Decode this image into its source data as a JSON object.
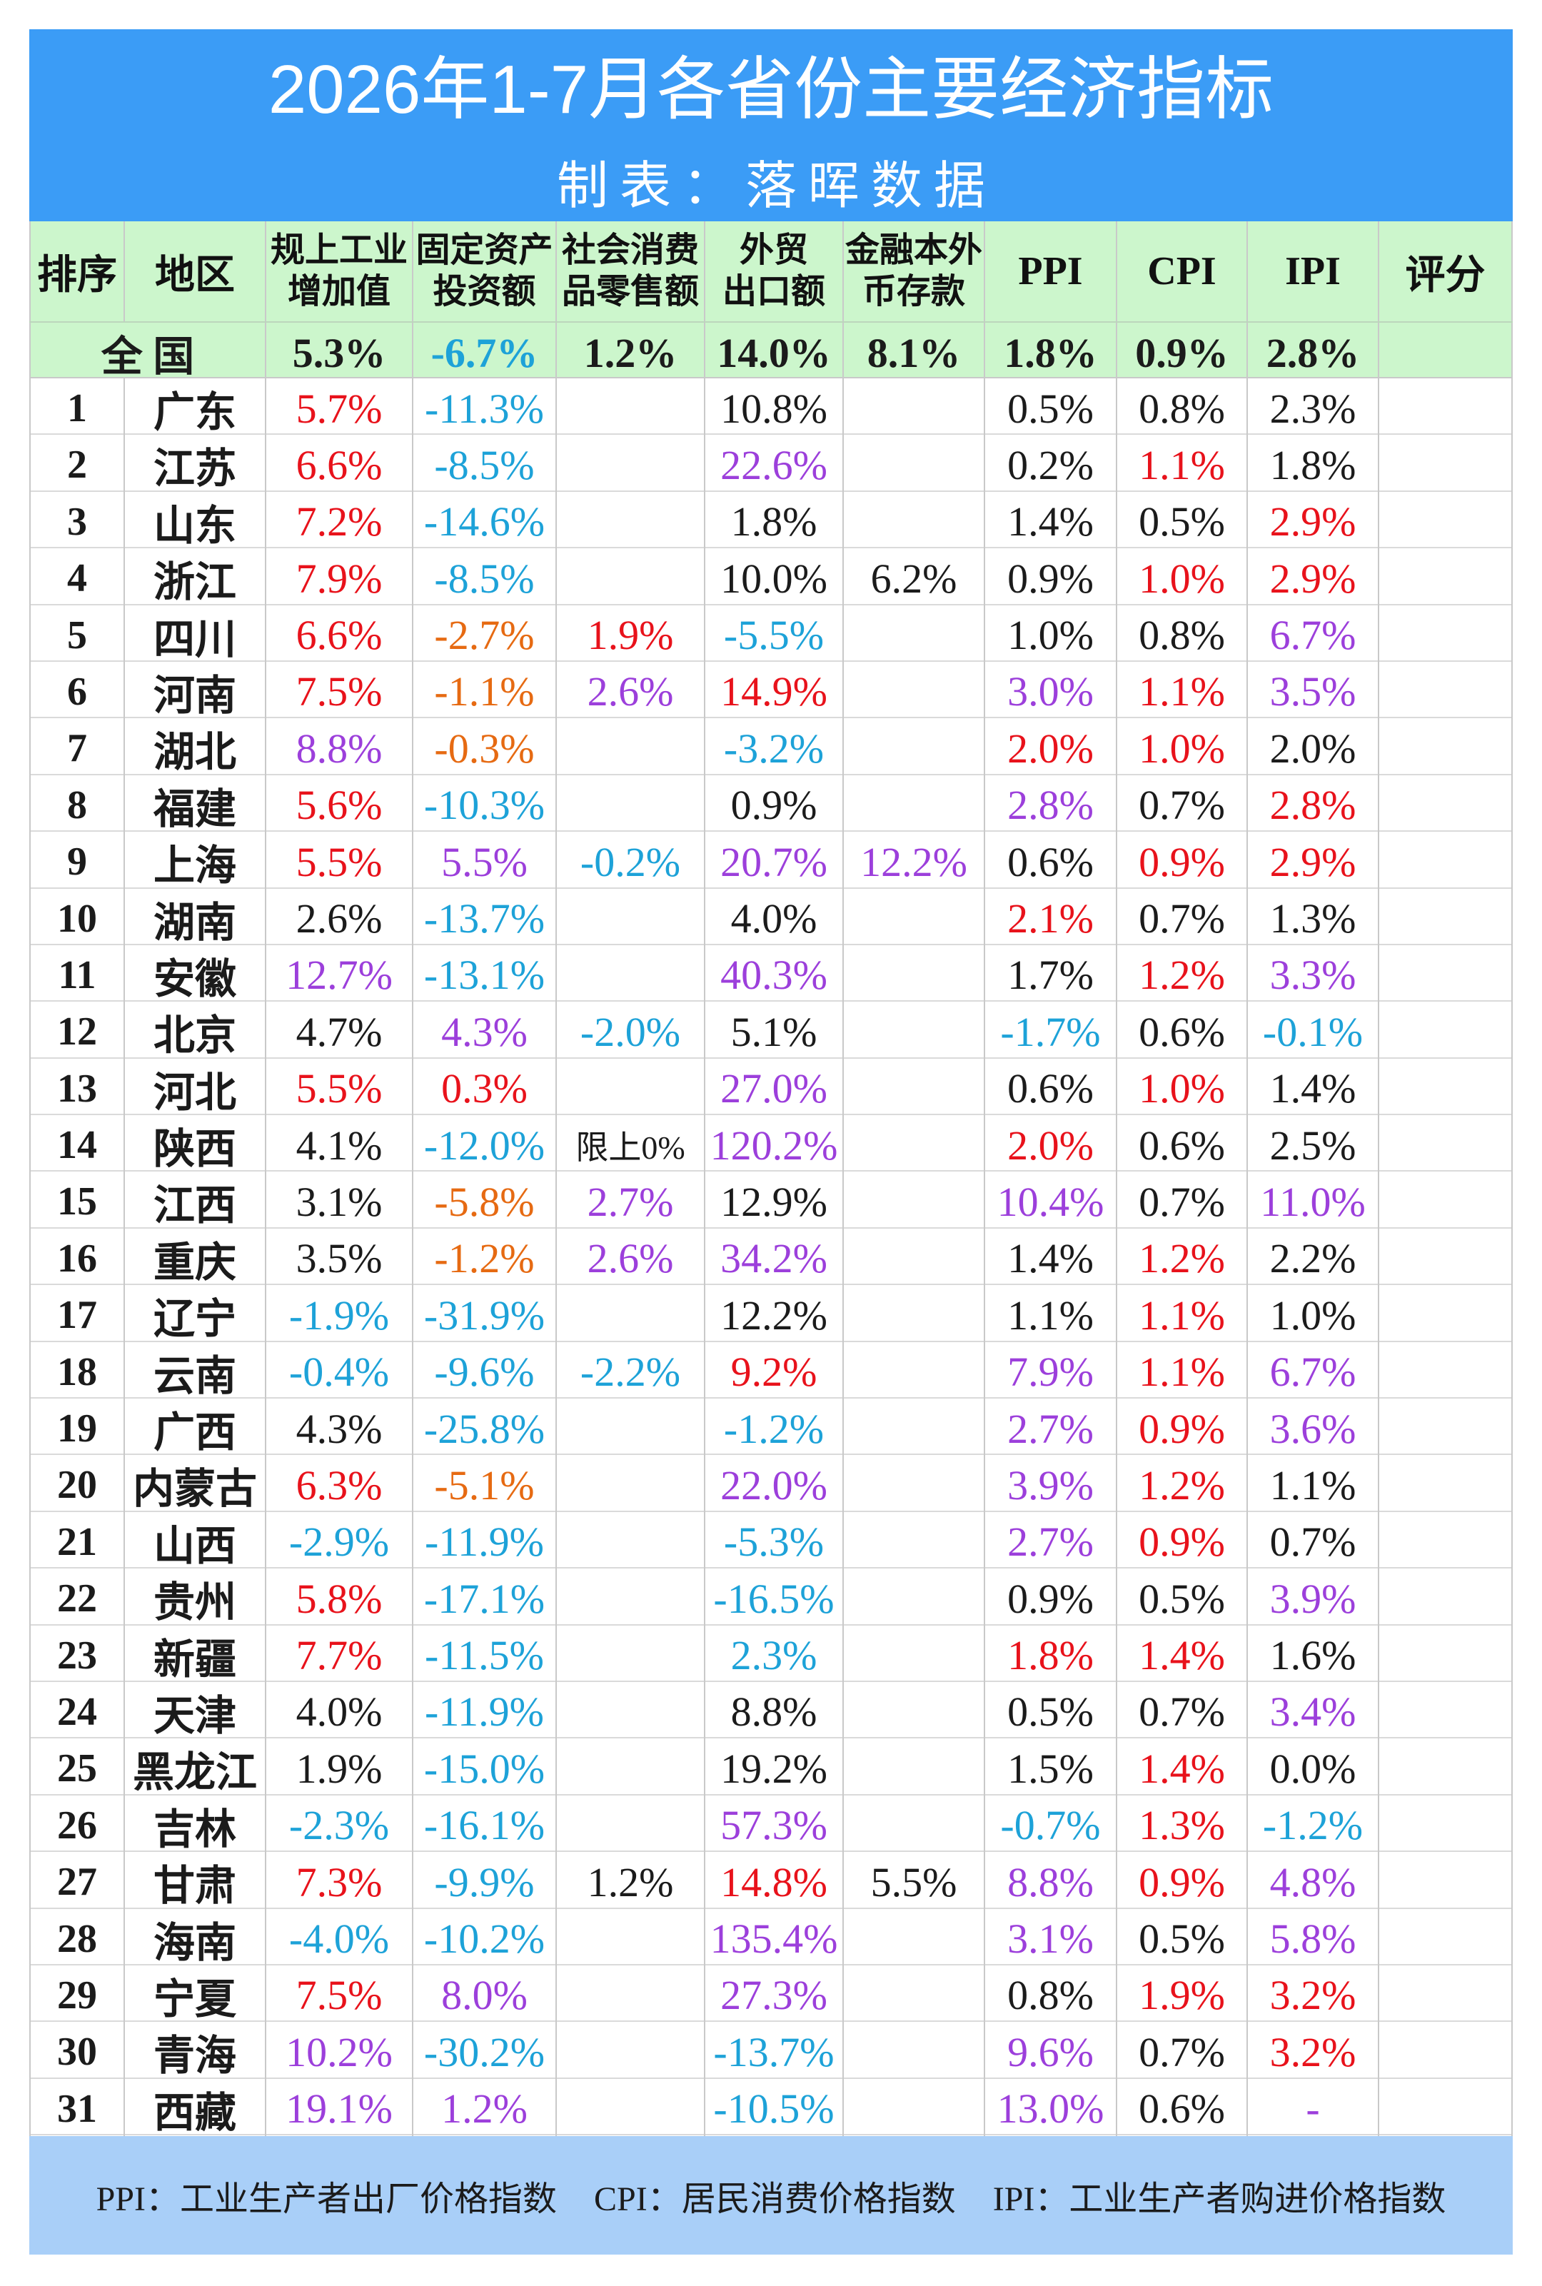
{
  "palette": {
    "title_band": "#3b9cf6",
    "header_band": "#ccf6cc",
    "footer_band": "#a9cff8",
    "red": "#e8121b",
    "blue": "#1da2d8",
    "purple": "#9c3fdb",
    "orange": "#e66a12",
    "black": "#1b1b1b"
  },
  "chart_data": {
    "type": "table",
    "title": "2026年1-7月各省份主要经济指标",
    "subtitle": "制表：落晖数据",
    "columns": [
      [
        "排序"
      ],
      [
        "地区"
      ],
      [
        "规上工业",
        "增加值"
      ],
      [
        "固定资产",
        "投资额"
      ],
      [
        "社会消费",
        "品零售额"
      ],
      [
        "外贸",
        "出口额"
      ],
      [
        "金融本外",
        "币存款"
      ],
      [
        "PPI"
      ],
      [
        "CPI"
      ],
      [
        "IPI"
      ],
      [
        "评分"
      ]
    ],
    "national": {
      "label": "全 国",
      "cells": [
        [
          "5.3%",
          "black"
        ],
        [
          "-6.7%",
          "blue"
        ],
        [
          "1.2%",
          "black"
        ],
        [
          "14.0%",
          "black"
        ],
        [
          "8.1%",
          "black"
        ],
        [
          "1.8%",
          "black"
        ],
        [
          "0.9%",
          "black"
        ],
        [
          "2.8%",
          "black"
        ]
      ]
    },
    "rows": [
      {
        "rank": 1,
        "region": "广东",
        "cells": [
          [
            "5.7%",
            "red"
          ],
          [
            "-11.3%",
            "blue"
          ],
          null,
          [
            "10.8%",
            "black"
          ],
          null,
          [
            "0.5%",
            "black"
          ],
          [
            "0.8%",
            "black"
          ],
          [
            "2.3%",
            "black"
          ]
        ]
      },
      {
        "rank": 2,
        "region": "江苏",
        "cells": [
          [
            "6.6%",
            "red"
          ],
          [
            "-8.5%",
            "blue"
          ],
          null,
          [
            "22.6%",
            "purple"
          ],
          null,
          [
            "0.2%",
            "black"
          ],
          [
            "1.1%",
            "red"
          ],
          [
            "1.8%",
            "black"
          ]
        ]
      },
      {
        "rank": 3,
        "region": "山东",
        "cells": [
          [
            "7.2%",
            "red"
          ],
          [
            "-14.6%",
            "blue"
          ],
          null,
          [
            "1.8%",
            "black"
          ],
          null,
          [
            "1.4%",
            "black"
          ],
          [
            "0.5%",
            "black"
          ],
          [
            "2.9%",
            "red"
          ]
        ]
      },
      {
        "rank": 4,
        "region": "浙江",
        "cells": [
          [
            "7.9%",
            "red"
          ],
          [
            "-8.5%",
            "blue"
          ],
          null,
          [
            "10.0%",
            "black"
          ],
          [
            "6.2%",
            "black"
          ],
          [
            "0.9%",
            "black"
          ],
          [
            "1.0%",
            "red"
          ],
          [
            "2.9%",
            "red"
          ]
        ]
      },
      {
        "rank": 5,
        "region": "四川",
        "cells": [
          [
            "6.6%",
            "red"
          ],
          [
            "-2.7%",
            "orange"
          ],
          [
            "1.9%",
            "red"
          ],
          [
            "-5.5%",
            "blue"
          ],
          null,
          [
            "1.0%",
            "black"
          ],
          [
            "0.8%",
            "black"
          ],
          [
            "6.7%",
            "purple"
          ]
        ]
      },
      {
        "rank": 6,
        "region": "河南",
        "cells": [
          [
            "7.5%",
            "red"
          ],
          [
            "-1.1%",
            "orange"
          ],
          [
            "2.6%",
            "purple"
          ],
          [
            "14.9%",
            "red"
          ],
          null,
          [
            "3.0%",
            "purple"
          ],
          [
            "1.1%",
            "red"
          ],
          [
            "3.5%",
            "purple"
          ]
        ]
      },
      {
        "rank": 7,
        "region": "湖北",
        "cells": [
          [
            "8.8%",
            "purple"
          ],
          [
            "-0.3%",
            "orange"
          ],
          null,
          [
            "-3.2%",
            "blue"
          ],
          null,
          [
            "2.0%",
            "red"
          ],
          [
            "1.0%",
            "red"
          ],
          [
            "2.0%",
            "black"
          ]
        ]
      },
      {
        "rank": 8,
        "region": "福建",
        "cells": [
          [
            "5.6%",
            "red"
          ],
          [
            "-10.3%",
            "blue"
          ],
          null,
          [
            "0.9%",
            "black"
          ],
          null,
          [
            "2.8%",
            "purple"
          ],
          [
            "0.7%",
            "black"
          ],
          [
            "2.8%",
            "red"
          ]
        ]
      },
      {
        "rank": 9,
        "region": "上海",
        "cells": [
          [
            "5.5%",
            "red"
          ],
          [
            "5.5%",
            "purple"
          ],
          [
            "-0.2%",
            "blue"
          ],
          [
            "20.7%",
            "purple"
          ],
          [
            "12.2%",
            "purple"
          ],
          [
            "0.6%",
            "black"
          ],
          [
            "0.9%",
            "red"
          ],
          [
            "2.9%",
            "red"
          ]
        ]
      },
      {
        "rank": 10,
        "region": "湖南",
        "cells": [
          [
            "2.6%",
            "black"
          ],
          [
            "-13.7%",
            "blue"
          ],
          null,
          [
            "4.0%",
            "black"
          ],
          null,
          [
            "2.1%",
            "red"
          ],
          [
            "0.7%",
            "black"
          ],
          [
            "1.3%",
            "black"
          ]
        ]
      },
      {
        "rank": 11,
        "region": "安徽",
        "cells": [
          [
            "12.7%",
            "purple"
          ],
          [
            "-13.1%",
            "blue"
          ],
          null,
          [
            "40.3%",
            "purple"
          ],
          null,
          [
            "1.7%",
            "black"
          ],
          [
            "1.2%",
            "red"
          ],
          [
            "3.3%",
            "purple"
          ]
        ]
      },
      {
        "rank": 12,
        "region": "北京",
        "cells": [
          [
            "4.7%",
            "black"
          ],
          [
            "4.3%",
            "purple"
          ],
          [
            "-2.0%",
            "blue"
          ],
          [
            "5.1%",
            "black"
          ],
          null,
          [
            "-1.7%",
            "blue"
          ],
          [
            "0.6%",
            "black"
          ],
          [
            "-0.1%",
            "blue"
          ]
        ]
      },
      {
        "rank": 13,
        "region": "河北",
        "cells": [
          [
            "5.5%",
            "red"
          ],
          [
            "0.3%",
            "red"
          ],
          null,
          [
            "27.0%",
            "purple"
          ],
          null,
          [
            "0.6%",
            "black"
          ],
          [
            "1.0%",
            "red"
          ],
          [
            "1.4%",
            "black"
          ]
        ]
      },
      {
        "rank": 14,
        "region": "陕西",
        "cells": [
          [
            "4.1%",
            "black"
          ],
          [
            "-12.0%",
            "blue"
          ],
          [
            "限上0%",
            "black"
          ],
          [
            "120.2%",
            "purple"
          ],
          null,
          [
            "2.0%",
            "red"
          ],
          [
            "0.6%",
            "black"
          ],
          [
            "2.5%",
            "black"
          ]
        ]
      },
      {
        "rank": 15,
        "region": "江西",
        "cells": [
          [
            "3.1%",
            "black"
          ],
          [
            "-5.8%",
            "orange"
          ],
          [
            "2.7%",
            "purple"
          ],
          [
            "12.9%",
            "black"
          ],
          null,
          [
            "10.4%",
            "purple"
          ],
          [
            "0.7%",
            "black"
          ],
          [
            "11.0%",
            "purple"
          ]
        ]
      },
      {
        "rank": 16,
        "region": "重庆",
        "cells": [
          [
            "3.5%",
            "black"
          ],
          [
            "-1.2%",
            "orange"
          ],
          [
            "2.6%",
            "purple"
          ],
          [
            "34.2%",
            "purple"
          ],
          null,
          [
            "1.4%",
            "black"
          ],
          [
            "1.2%",
            "red"
          ],
          [
            "2.2%",
            "black"
          ]
        ]
      },
      {
        "rank": 17,
        "region": "辽宁",
        "cells": [
          [
            "-1.9%",
            "blue"
          ],
          [
            "-31.9%",
            "blue"
          ],
          null,
          [
            "12.2%",
            "black"
          ],
          null,
          [
            "1.1%",
            "black"
          ],
          [
            "1.1%",
            "red"
          ],
          [
            "1.0%",
            "black"
          ]
        ]
      },
      {
        "rank": 18,
        "region": "云南",
        "cells": [
          [
            "-0.4%",
            "blue"
          ],
          [
            "-9.6%",
            "blue"
          ],
          [
            "-2.2%",
            "blue"
          ],
          [
            "9.2%",
            "red"
          ],
          null,
          [
            "7.9%",
            "purple"
          ],
          [
            "1.1%",
            "red"
          ],
          [
            "6.7%",
            "purple"
          ]
        ]
      },
      {
        "rank": 19,
        "region": "广西",
        "cells": [
          [
            "4.3%",
            "black"
          ],
          [
            "-25.8%",
            "blue"
          ],
          null,
          [
            "-1.2%",
            "blue"
          ],
          null,
          [
            "2.7%",
            "purple"
          ],
          [
            "0.9%",
            "red"
          ],
          [
            "3.6%",
            "purple"
          ]
        ]
      },
      {
        "rank": 20,
        "region": "内蒙古",
        "cells": [
          [
            "6.3%",
            "red"
          ],
          [
            "-5.1%",
            "orange"
          ],
          null,
          [
            "22.0%",
            "purple"
          ],
          null,
          [
            "3.9%",
            "purple"
          ],
          [
            "1.2%",
            "red"
          ],
          [
            "1.1%",
            "black"
          ]
        ]
      },
      {
        "rank": 21,
        "region": "山西",
        "cells": [
          [
            "-2.9%",
            "blue"
          ],
          [
            "-11.9%",
            "blue"
          ],
          null,
          [
            "-5.3%",
            "blue"
          ],
          null,
          [
            "2.7%",
            "purple"
          ],
          [
            "0.9%",
            "red"
          ],
          [
            "0.7%",
            "black"
          ]
        ]
      },
      {
        "rank": 22,
        "region": "贵州",
        "cells": [
          [
            "5.8%",
            "red"
          ],
          [
            "-17.1%",
            "blue"
          ],
          null,
          [
            "-16.5%",
            "blue"
          ],
          null,
          [
            "0.9%",
            "black"
          ],
          [
            "0.5%",
            "black"
          ],
          [
            "3.9%",
            "purple"
          ]
        ]
      },
      {
        "rank": 23,
        "region": "新疆",
        "cells": [
          [
            "7.7%",
            "red"
          ],
          [
            "-11.5%",
            "blue"
          ],
          null,
          [
            "2.3%",
            "blue"
          ],
          null,
          [
            "1.8%",
            "red"
          ],
          [
            "1.4%",
            "red"
          ],
          [
            "1.6%",
            "black"
          ]
        ]
      },
      {
        "rank": 24,
        "region": "天津",
        "cells": [
          [
            "4.0%",
            "black"
          ],
          [
            "-11.9%",
            "blue"
          ],
          null,
          [
            "8.8%",
            "black"
          ],
          null,
          [
            "0.5%",
            "black"
          ],
          [
            "0.7%",
            "black"
          ],
          [
            "3.4%",
            "purple"
          ]
        ]
      },
      {
        "rank": 25,
        "region": "黑龙江",
        "cells": [
          [
            "1.9%",
            "black"
          ],
          [
            "-15.0%",
            "blue"
          ],
          null,
          [
            "19.2%",
            "black"
          ],
          null,
          [
            "1.5%",
            "black"
          ],
          [
            "1.4%",
            "red"
          ],
          [
            "0.0%",
            "black"
          ]
        ]
      },
      {
        "rank": 26,
        "region": "吉林",
        "cells": [
          [
            "-2.3%",
            "blue"
          ],
          [
            "-16.1%",
            "blue"
          ],
          null,
          [
            "57.3%",
            "purple"
          ],
          null,
          [
            "-0.7%",
            "blue"
          ],
          [
            "1.3%",
            "red"
          ],
          [
            "-1.2%",
            "blue"
          ]
        ]
      },
      {
        "rank": 27,
        "region": "甘肃",
        "cells": [
          [
            "7.3%",
            "red"
          ],
          [
            "-9.9%",
            "blue"
          ],
          [
            "1.2%",
            "black"
          ],
          [
            "14.8%",
            "red"
          ],
          [
            "5.5%",
            "black"
          ],
          [
            "8.8%",
            "purple"
          ],
          [
            "0.9%",
            "red"
          ],
          [
            "4.8%",
            "purple"
          ]
        ]
      },
      {
        "rank": 28,
        "region": "海南",
        "cells": [
          [
            "-4.0%",
            "blue"
          ],
          [
            "-10.2%",
            "blue"
          ],
          null,
          [
            "135.4%",
            "purple"
          ],
          null,
          [
            "3.1%",
            "purple"
          ],
          [
            "0.5%",
            "black"
          ],
          [
            "5.8%",
            "purple"
          ]
        ]
      },
      {
        "rank": 29,
        "region": "宁夏",
        "cells": [
          [
            "7.5%",
            "red"
          ],
          [
            "8.0%",
            "purple"
          ],
          null,
          [
            "27.3%",
            "purple"
          ],
          null,
          [
            "0.8%",
            "black"
          ],
          [
            "1.9%",
            "red"
          ],
          [
            "3.2%",
            "red"
          ]
        ]
      },
      {
        "rank": 30,
        "region": "青海",
        "cells": [
          [
            "10.2%",
            "purple"
          ],
          [
            "-30.2%",
            "blue"
          ],
          null,
          [
            "-13.7%",
            "blue"
          ],
          null,
          [
            "9.6%",
            "purple"
          ],
          [
            "0.7%",
            "black"
          ],
          [
            "3.2%",
            "red"
          ]
        ]
      },
      {
        "rank": 31,
        "region": "西藏",
        "cells": [
          [
            "19.1%",
            "purple"
          ],
          [
            "1.2%",
            "purple"
          ],
          null,
          [
            "-10.5%",
            "blue"
          ],
          null,
          [
            "13.0%",
            "purple"
          ],
          [
            "0.6%",
            "black"
          ],
          [
            "-",
            "purple"
          ]
        ]
      }
    ]
  },
  "footer": {
    "items": [
      "PPI：工业生产者出厂价格指数",
      "CPI：居民消费价格指数",
      "IPI：工业生产者购进价格指数"
    ]
  }
}
